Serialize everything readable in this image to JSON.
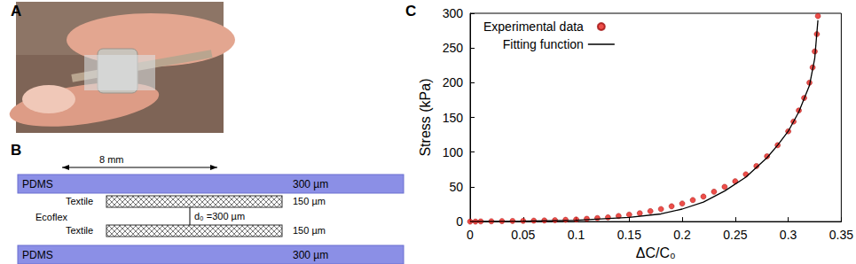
{
  "photo": {
    "panel": "A"
  },
  "diagram": {
    "panel": "B",
    "width": "8 mm",
    "layers": [
      {
        "material": "PDMS",
        "thickness": "300 µm"
      },
      {
        "material": "Textile",
        "thickness": "150 µm"
      },
      {
        "material": "Ecoflex"
      },
      {
        "material": "Textile",
        "thickness": "150 µm"
      },
      {
        "material": "PDMS",
        "thickness": "300 µm"
      }
    ],
    "gap": "d₀ =300 µm"
  },
  "chart_data": {
    "panel": "C",
    "type": "scatter",
    "x_label": "ΔC/C₀",
    "y_label": "Stress (kPa)",
    "xlim": [
      0,
      0.35
    ],
    "xticks": [
      0,
      0.05,
      0.1,
      0.15,
      0.2,
      0.25,
      0.3,
      0.35
    ],
    "ylim": [
      0,
      300
    ],
    "yticks": [
      0,
      50,
      100,
      150,
      200,
      250,
      300
    ],
    "grid": false,
    "legend": "upper left",
    "series": [
      {
        "name": "Experimental data",
        "type": "scatter",
        "color": "#e8221c",
        "marker": "circle",
        "x": [
          0,
          0.005,
          0.01,
          0.02,
          0.03,
          0.04,
          0.05,
          0.06,
          0.07,
          0.08,
          0.09,
          0.1,
          0.11,
          0.12,
          0.13,
          0.14,
          0.15,
          0.16,
          0.17,
          0.18,
          0.19,
          0.2,
          0.21,
          0.22,
          0.23,
          0.24,
          0.25,
          0.26,
          0.27,
          0.28,
          0.29,
          0.3,
          0.305,
          0.31,
          0.315,
          0.32,
          0.323,
          0.325,
          0.327,
          0.328
        ],
        "values": [
          0,
          0,
          0.2,
          0.4,
          0.6,
          0.8,
          1,
          1.3,
          1.6,
          2,
          2.5,
          3,
          4,
          5,
          6,
          8,
          10,
          12,
          15,
          18,
          22,
          26,
          31,
          36,
          43,
          50,
          58,
          68,
          80,
          94,
          110,
          130,
          144,
          160,
          178,
          200,
          222,
          245,
          270,
          296
        ]
      },
      {
        "name": "Fitting function",
        "type": "line",
        "color": "#000000",
        "line_style": "solid",
        "x": [
          0,
          0.05,
          0.1,
          0.15,
          0.18,
          0.2,
          0.22,
          0.24,
          0.26,
          0.28,
          0.29,
          0.3,
          0.31,
          0.32,
          0.325,
          0.328
        ],
        "values": [
          0,
          0.5,
          2,
          6,
          11,
          18,
          28,
          44,
          64,
          92,
          110,
          130,
          158,
          196,
          235,
          290
        ]
      }
    ]
  }
}
